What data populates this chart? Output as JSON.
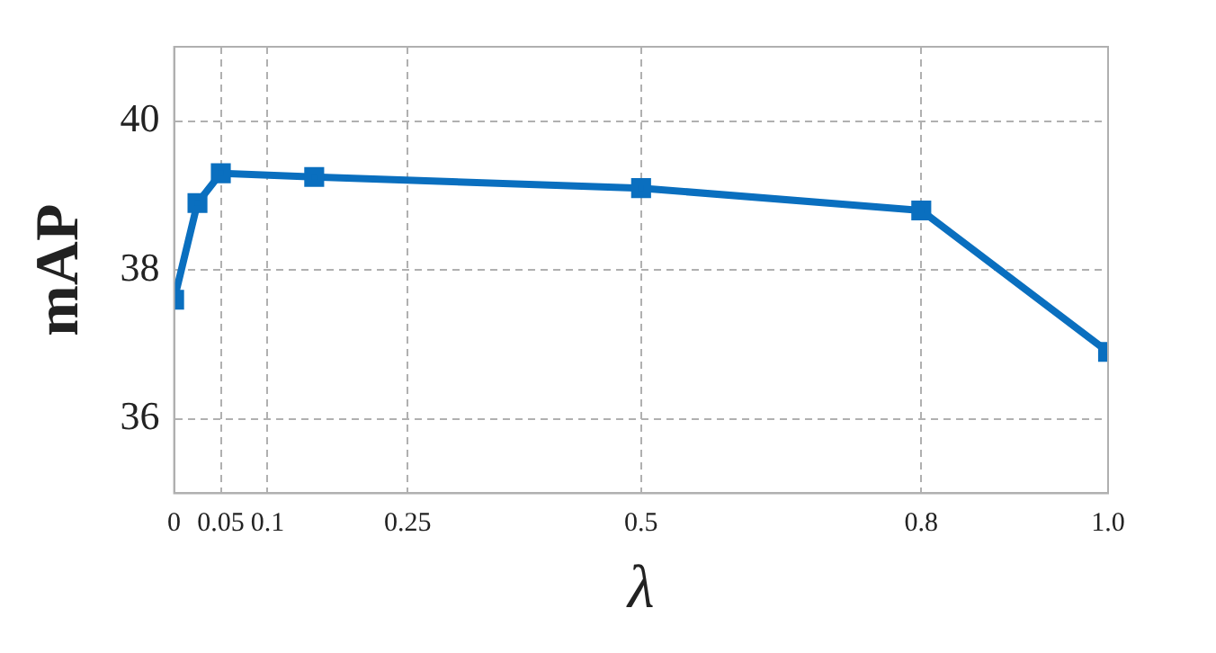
{
  "chart_data": {
    "type": "line",
    "xlabel": "λ",
    "ylabel": "mAP",
    "x": [
      0,
      0.025,
      0.05,
      0.15,
      0.5,
      0.8,
      1.0
    ],
    "series": [
      {
        "color": "#0a6fbf",
        "values": [
          37.6,
          38.9,
          39.3,
          39.25,
          39.1,
          38.8,
          36.9
        ]
      }
    ],
    "xlim": [
      0,
      1.0
    ],
    "xticks": [
      0,
      0.05,
      0.1,
      0.25,
      0.5,
      0.8,
      {
        "value": 1.0,
        "label": "1.0"
      }
    ],
    "ylim": [
      35,
      41
    ],
    "yticks": [
      36,
      38,
      40
    ],
    "grid": true,
    "legend": false,
    "marker": "square",
    "line_style": "solid"
  }
}
